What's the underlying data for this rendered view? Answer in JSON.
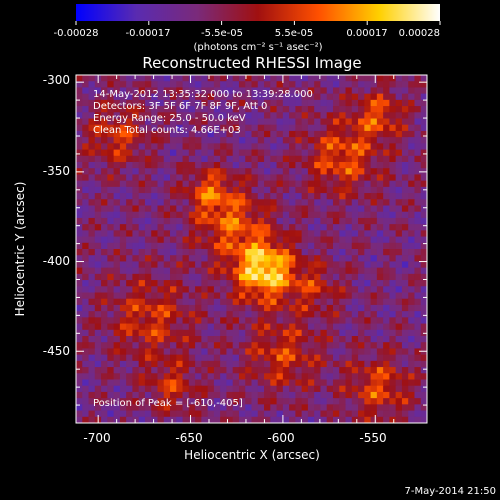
{
  "chart_data": {
    "type": "heatmap",
    "title": "Reconstructed RHESSI Image",
    "colorbar": {
      "ticks": [
        "-0.00028",
        "-0.00017",
        "-5.5e-05",
        "5.5e-05",
        "0.00017",
        "0.00028"
      ],
      "range": [
        -0.00028,
        0.00028
      ],
      "unit_label": "(photons cm⁻² s⁻¹ asec⁻²)",
      "colors": [
        "#0000ff",
        "#5a2bb0",
        "#7a2a7a",
        "#a01010",
        "#ff5000",
        "#ffd000",
        "#ffffff"
      ]
    },
    "xlabel": "Heliocentric X (arcsec)",
    "ylabel": "Heliocentric Y (arcsec)",
    "xlim": [
      -712,
      -522
    ],
    "ylim": [
      -490,
      -296
    ],
    "xticks": [
      -700,
      -650,
      -600,
      -550
    ],
    "yticks": [
      -300,
      -350,
      -400,
      -450
    ],
    "peak": [
      -610,
      -405
    ],
    "info_lines": [
      "14-May-2012 13:35:32.000 to 13:39:28.000",
      "Detectors: 3F 5F 6F 7F 8F 9F, Att 0",
      "Energy Range: 25.0 - 50.0 keV",
      "Clean     Total counts: 4.66E+03"
    ],
    "peak_label": "Position of Peak = [-610,-405]"
  },
  "timestamp": "7-May-2014 21:50"
}
